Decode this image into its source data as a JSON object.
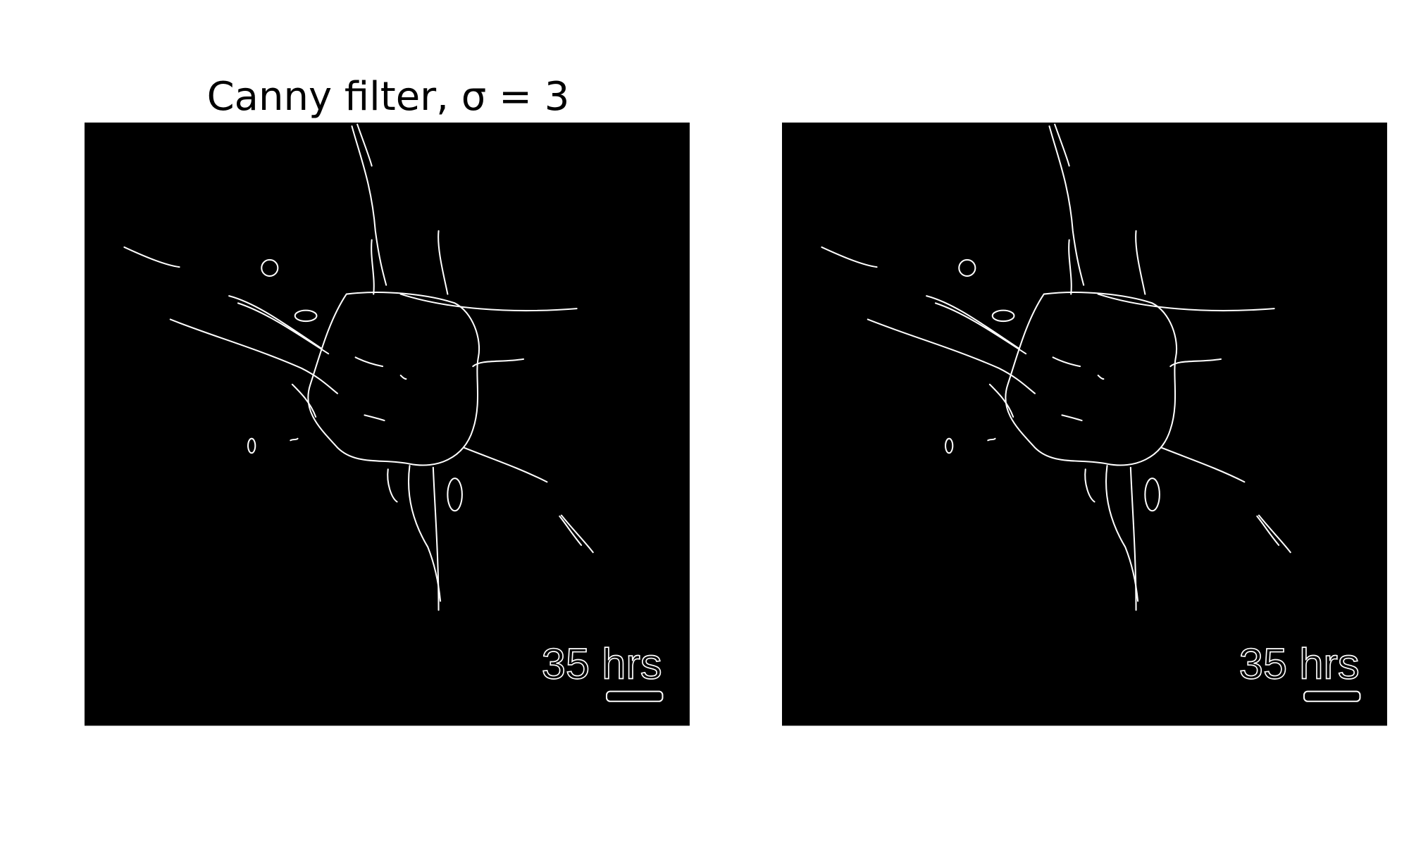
{
  "title": "Canny filter, σ = 3",
  "panels": [
    {
      "label": "35 hrs"
    },
    {
      "label": "35 hrs"
    }
  ]
}
